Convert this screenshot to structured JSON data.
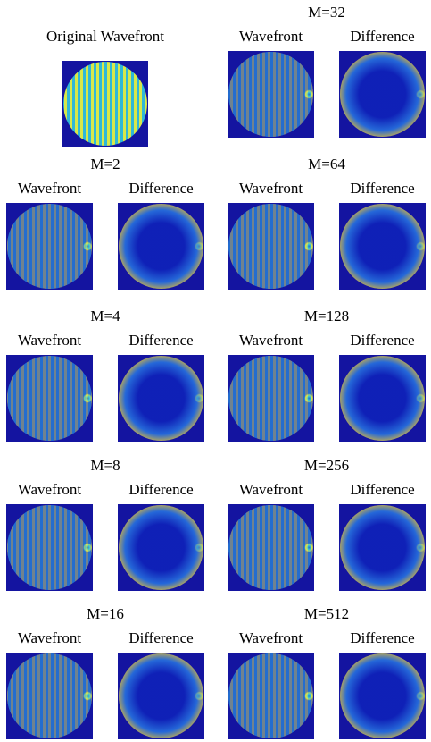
{
  "original": {
    "title": "Original Wavefront"
  },
  "panels": [
    {
      "label": "M=32",
      "wavefront": "Wavefront",
      "difference": "Difference"
    },
    {
      "label": "M=2",
      "wavefront": "Wavefront",
      "difference": "Difference"
    },
    {
      "label": "M=64",
      "wavefront": "Wavefront",
      "difference": "Difference"
    },
    {
      "label": "M=4",
      "wavefront": "Wavefront",
      "difference": "Difference"
    },
    {
      "label": "M=128",
      "wavefront": "Wavefront",
      "difference": "Difference"
    },
    {
      "label": "M=8",
      "wavefront": "Wavefront",
      "difference": "Difference"
    },
    {
      "label": "M=256",
      "wavefront": "Wavefront",
      "difference": "Difference"
    },
    {
      "label": "M=16",
      "wavefront": "Wavefront",
      "difference": "Difference"
    },
    {
      "label": "M=512",
      "wavefront": "Wavefront",
      "difference": "Difference"
    }
  ]
}
